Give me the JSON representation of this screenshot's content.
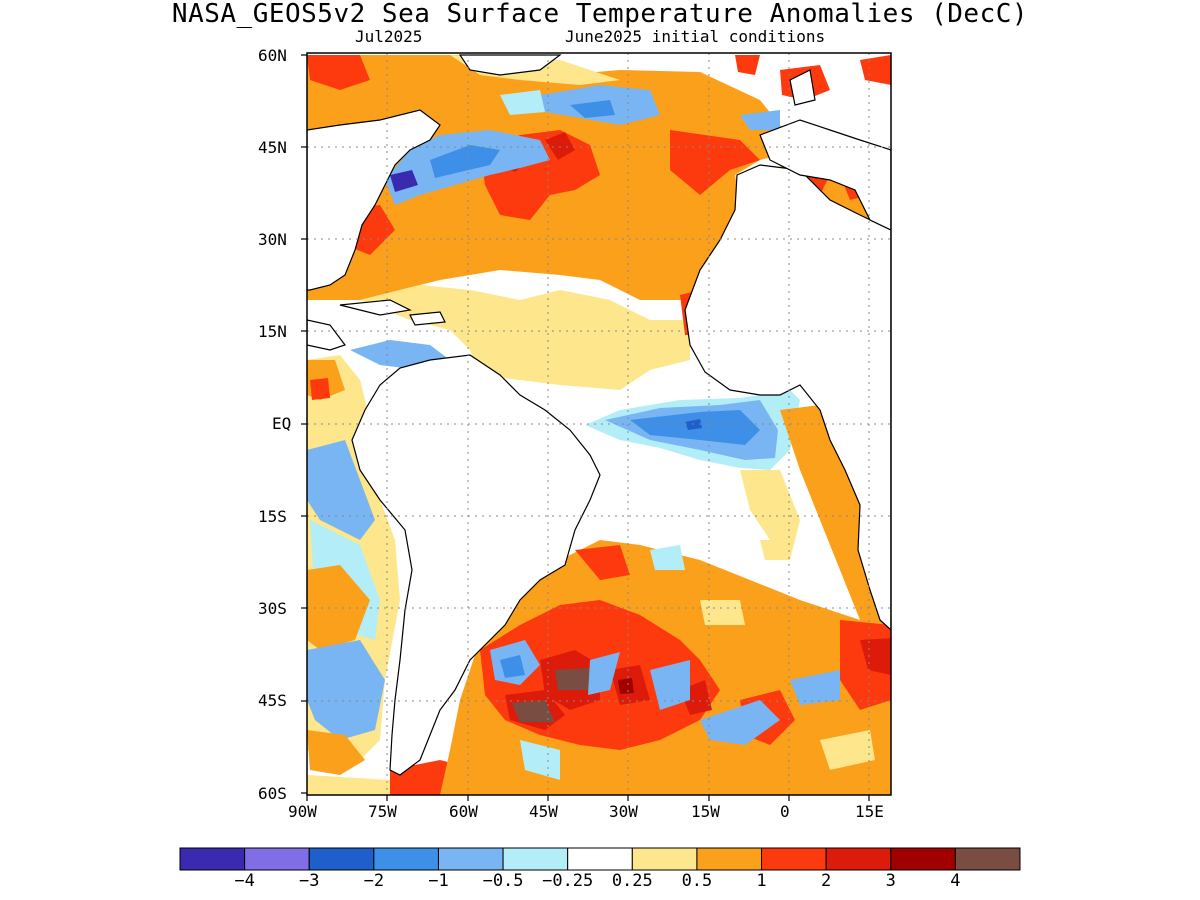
{
  "title": "NASA_GEOS5v2 Sea Surface Temperature Anomalies (DecC)",
  "subtitle_left": "Jul2025",
  "subtitle_right": "June2025 initial conditions",
  "lat_ticks": [
    "60N",
    "45N",
    "30N",
    "15N",
    "EQ",
    "15S",
    "30S",
    "45S",
    "60S"
  ],
  "lon_ticks": [
    "90W",
    "75W",
    "60W",
    "45W",
    "30W",
    "15W",
    "0",
    "15E"
  ],
  "colorbar": {
    "colors": [
      "#3a2ab0",
      "#7f6ee6",
      "#1e5fcc",
      "#3d8fe8",
      "#79b5f2",
      "#b3eef8",
      "#ffffff",
      "#fde68b",
      "#fba01a",
      "#fd3a0e",
      "#dd1b0b",
      "#a00000",
      "#7a4d42"
    ],
    "labels": [
      "−4",
      "−3",
      "−2",
      "−1",
      "−0.5",
      "−0.25",
      "0.25",
      "0.5",
      "1",
      "2",
      "3",
      "4"
    ]
  }
}
